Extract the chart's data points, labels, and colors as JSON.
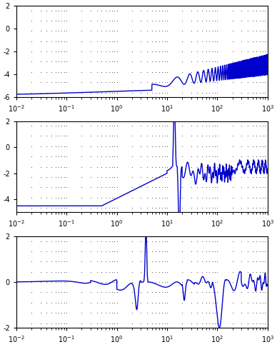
{
  "fig_width": 3.88,
  "fig_height": 4.86,
  "dpi": 100,
  "background_color": "#ffffff",
  "line_color": "#0000cc",
  "line_width": 1.0,
  "dot_color": "#333333",
  "dot_size": 1.5,
  "subplots": [
    {
      "ylim": [
        -6,
        2
      ],
      "yticks": [
        -6,
        -4,
        -2,
        0,
        2
      ],
      "ytick_labels": [
        "-6",
        "-4",
        "-2",
        "0",
        "2"
      ],
      "xlim_log": [
        -2,
        3
      ]
    },
    {
      "ylim": [
        -5,
        2
      ],
      "yticks": [
        -4,
        -2,
        0,
        2
      ],
      "ytick_labels": [
        "-4",
        "-2",
        "0",
        "2"
      ],
      "xlim_log": [
        -2,
        3
      ]
    },
    {
      "ylim": [
        -2,
        2
      ],
      "yticks": [
        -2,
        0,
        2
      ],
      "ytick_labels": [
        "-2",
        "0",
        "2"
      ],
      "xlim_log": [
        -2,
        3
      ]
    }
  ]
}
